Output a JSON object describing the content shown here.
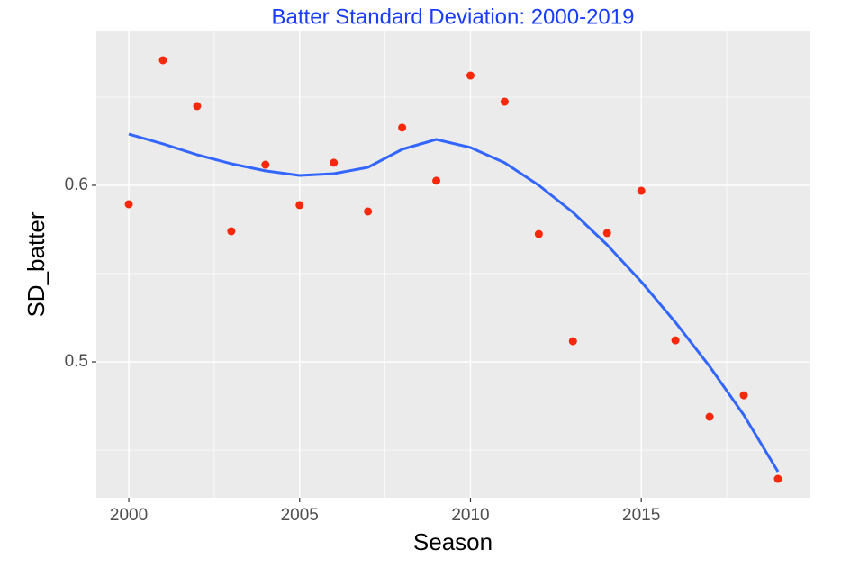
{
  "chart_data": {
    "type": "scatter",
    "title": "Batter Standard Deviation: 2000-2019",
    "x_label": "Season",
    "y_label": "SD_batter",
    "x": [
      2000,
      2001,
      2002,
      2003,
      2004,
      2005,
      2006,
      2007,
      2008,
      2009,
      2010,
      2011,
      2012,
      2013,
      2014,
      2015,
      2016,
      2017,
      2018,
      2019
    ],
    "values": [
      0.5893,
      0.6709,
      0.6449,
      0.574,
      0.6117,
      0.5888,
      0.6128,
      0.5852,
      0.6327,
      0.6026,
      0.6622,
      0.6474,
      0.5724,
      0.5117,
      0.573,
      0.5969,
      0.5122,
      0.4689,
      0.4811,
      0.4337
    ],
    "color": "#f8280c",
    "smooth": {
      "values": [
        0.629,
        0.6235,
        0.6173,
        0.6122,
        0.6082,
        0.6056,
        0.6066,
        0.6102,
        0.6204,
        0.626,
        0.6214,
        0.6128,
        0.6,
        0.5847,
        0.5663,
        0.5454,
        0.5224,
        0.4974,
        0.4699,
        0.4378
      ],
      "color": "#3366ff"
    },
    "xlim": [
      1999.05,
      2019.95
    ],
    "ylim": [
      0.423,
      0.6872
    ],
    "xticks": [
      2000,
      2005,
      2010,
      2015
    ],
    "yticks": [
      0.5,
      0.6
    ],
    "x_minor_grid": [
      2002.5,
      2007.5,
      2012.5,
      2017.5
    ],
    "y_minor_grid": [
      0.45,
      0.55,
      0.65
    ],
    "grid": true
  }
}
